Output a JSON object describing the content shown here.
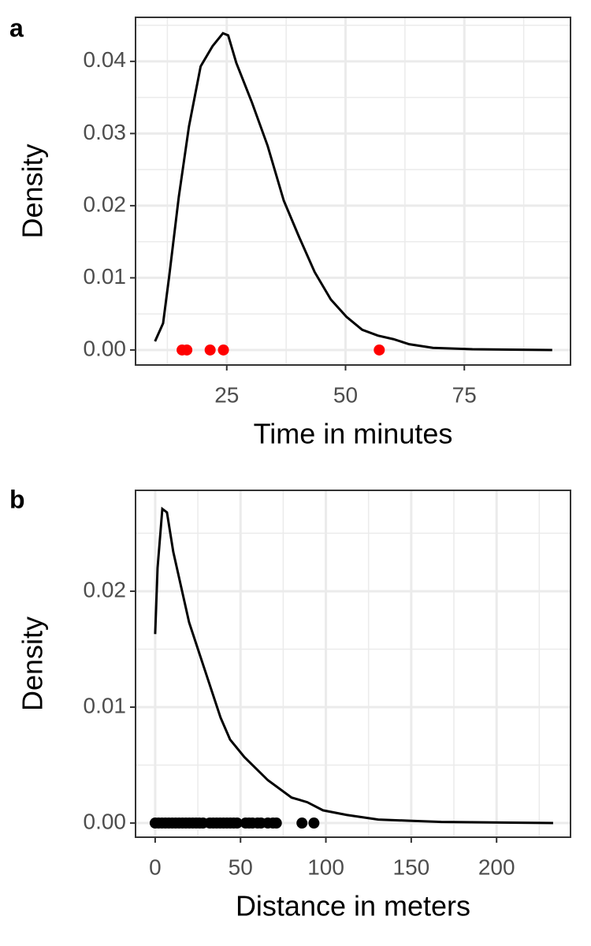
{
  "chart_data": [
    {
      "type": "density",
      "panel_label": "a",
      "xlabel": "Time in minutes",
      "ylabel": "Density",
      "x": [
        9.9,
        11.6,
        12.9,
        14.9,
        17.05,
        19.5,
        22.0,
        24.2,
        25.3,
        27.0,
        30.3,
        33.6,
        37.0,
        40.2,
        43.5,
        46.9,
        50.2,
        53.5,
        56.8,
        60.1,
        63.4,
        68.4,
        76.7,
        93.5
      ],
      "values": [
        0.0012,
        0.0037,
        0.0103,
        0.0212,
        0.031,
        0.0393,
        0.0421,
        0.0439,
        0.0436,
        0.0398,
        0.0343,
        0.0283,
        0.0207,
        0.0157,
        0.0108,
        0.007,
        0.0046,
        0.0028,
        0.002,
        0.0015,
        0.0008,
        0.0003,
        0.0001,
        0
      ],
      "color": "#000000",
      "points": {
        "color": "#ff0000",
        "x": [
          15.6,
          16.6,
          21.5,
          24.3,
          57.1
        ],
        "y": [
          0,
          0,
          0,
          0,
          0
        ]
      },
      "xlim": [
        5.8,
        97.35
      ],
      "xticks": [
        25,
        50,
        75
      ],
      "ylim": [
        -0.00208,
        0.0461
      ],
      "yticks": [
        {
          "value": 0,
          "label": "0.00"
        },
        {
          "value": 0.01,
          "label": "0.01"
        },
        {
          "value": 0.02,
          "label": "0.02"
        },
        {
          "value": 0.03,
          "label": "0.03"
        },
        {
          "value": 0.04,
          "label": "0.04"
        }
      ],
      "grid": true
    },
    {
      "type": "density",
      "panel_label": "b",
      "xlabel": "Distance in meters",
      "ylabel": "Density",
      "x": [
        0,
        1.4,
        4.2,
        6.9,
        10.6,
        19.9,
        29.1,
        38.3,
        43.9,
        52.2,
        66.0,
        79.9,
        89.1,
        98.3,
        112.2,
        130.7,
        149.1,
        167.6,
        233.1
      ],
      "values": [
        0.0163,
        0.022,
        0.0271,
        0.0268,
        0.0234,
        0.0173,
        0.0132,
        0.0091,
        0.0072,
        0.0057,
        0.0037,
        0.0022,
        0.0018,
        0.0011,
        0.0007,
        0.0003,
        0.0002,
        0.0001,
        0
      ],
      "color": "#000000",
      "points": {
        "color": "#000000",
        "x": [
          0,
          2,
          4,
          6,
          8,
          10,
          12,
          14,
          16,
          18,
          20,
          22,
          24,
          26,
          28,
          32,
          34,
          36,
          38,
          40,
          42,
          44,
          46,
          48,
          53,
          55,
          57,
          60,
          62,
          66,
          69,
          71,
          86,
          93
        ],
        "y": [
          0,
          0,
          0,
          0,
          0,
          0,
          0,
          0,
          0,
          0,
          0,
          0,
          0,
          0,
          0,
          0,
          0,
          0,
          0,
          0,
          0,
          0,
          0,
          0,
          0,
          0,
          0,
          0,
          0,
          0,
          0,
          0,
          0,
          0
        ]
      },
      "xlim": [
        -11.5,
        243.3
      ],
      "xticks": [
        0,
        50,
        100,
        150,
        200
      ],
      "ylim": [
        -0.00122,
        0.0287
      ],
      "yticks": [
        {
          "value": 0,
          "label": "0.00"
        },
        {
          "value": 0.01,
          "label": "0.01"
        },
        {
          "value": 0.02,
          "label": "0.02"
        }
      ],
      "grid": true
    }
  ]
}
